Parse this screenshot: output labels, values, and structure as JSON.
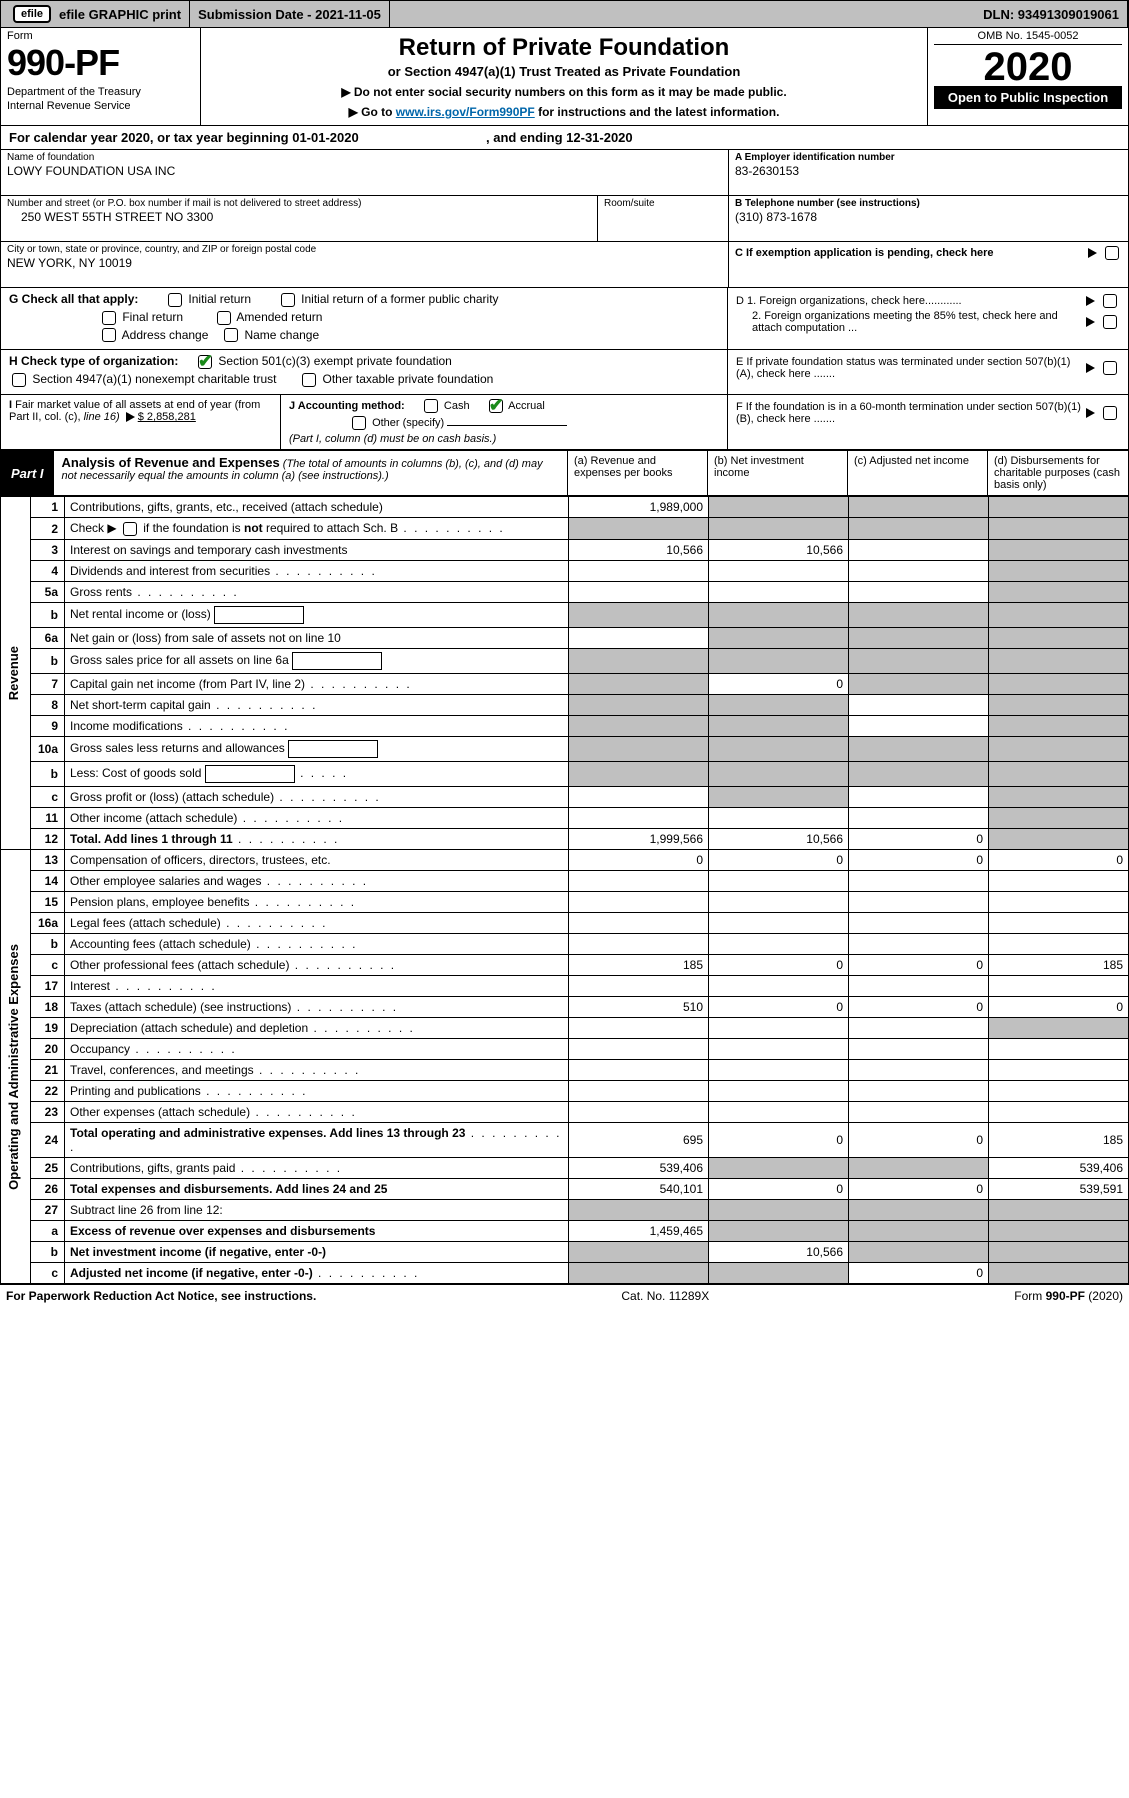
{
  "colors": {
    "shade": "#c0c0c0",
    "checkmark": "#1a8a1a",
    "link": "#0066aa"
  },
  "topbar": {
    "efile_label": "efile GRAPHIC print",
    "submission_label": "Submission Date - 2021-11-05",
    "dln": "DLN: 93491309019061"
  },
  "header": {
    "form_word": "Form",
    "form_number": "990-PF",
    "dept": "Department of the Treasury",
    "irs": "Internal Revenue Service",
    "title": "Return of Private Foundation",
    "subtitle": "or Section 4947(a)(1) Trust Treated as Private Foundation",
    "note1_pre": "▶ Do not enter social security numbers on this form as it may be made public.",
    "note2_pre": "▶ Go to ",
    "note2_link": "www.irs.gov/Form990PF",
    "note2_post": " for instructions and the latest information.",
    "omb": "OMB No. 1545-0052",
    "year": "2020",
    "open_text": "Open to Public Inspection"
  },
  "cal_year": {
    "prefix": "For calendar year 2020, or tax year beginning 01-01-2020",
    "mid": ", and ending 12-31-2020"
  },
  "id": {
    "name_lbl": "Name of foundation",
    "name_val": "LOWY FOUNDATION USA INC",
    "addr_lbl": "Number and street (or P.O. box number if mail is not delivered to street address)",
    "room_lbl": "Room/suite",
    "addr_val": "250 WEST 55TH STREET NO 3300",
    "city_lbl": "City or town, state or province, country, and ZIP or foreign postal code",
    "city_val": "NEW YORK, NY  10019",
    "a_lbl": "A Employer identification number",
    "a_val": "83-2630153",
    "b_lbl": "B Telephone number (see instructions)",
    "b_val": "(310) 873-1678",
    "c_lbl": "C If exemption application is pending, check here",
    "d1_lbl": "D 1. Foreign organizations, check here............",
    "d2_lbl": "2. Foreign organizations meeting the 85% test, check here and attach computation ...",
    "e_lbl": "E  If private foundation status was terminated under section 507(b)(1)(A), check here .......",
    "f_lbl": "F  If the foundation is in a 60-month termination under section 507(b)(1)(B), check here .......",
    "g_lbl": "G Check all that apply:",
    "g_opts": [
      "Initial return",
      "Initial return of a former public charity",
      "Final return",
      "Amended return",
      "Address change",
      "Name change"
    ],
    "h_lbl": "H Check type of organization:",
    "h_opt1": "Section 501(c)(3) exempt private foundation",
    "h_opt2": "Section 4947(a)(1) nonexempt charitable trust",
    "h_opt3": "Other taxable private foundation",
    "i_lbl": "I Fair market value of all assets at end of year (from Part II, col. (c), line 16) ▶",
    "i_val": "$  2,858,281",
    "j_lbl": "J Accounting method:",
    "j_opts": [
      "Cash",
      "Accrual"
    ],
    "j_other": "Other (specify)",
    "j_note": "(Part I, column (d) must be on cash basis.)"
  },
  "part1": {
    "tag": "Part I",
    "title": "Analysis of Revenue and Expenses",
    "title_note": " (The total of amounts in columns (b), (c), and (d) may not necessarily equal the amounts in column (a) (see instructions).)",
    "col_a": "(a)   Revenue and expenses per books",
    "col_b": "(b)   Net investment income",
    "col_c": "(c)   Adjusted net income",
    "col_d": "(d)   Disbursements for charitable purposes (cash basis only)",
    "side_rev": "Revenue",
    "side_exp": "Operating and Administrative Expenses"
  },
  "rows_rev": [
    {
      "n": "1",
      "desc": "Contributions, gifts, grants, etc., received (attach schedule)",
      "a": "1,989,000",
      "b": "",
      "c": "",
      "d": "",
      "shade_b": true,
      "shade_c": true,
      "shade_d": true
    },
    {
      "n": "2",
      "desc": "Check ▶ ☐ if the foundation is not required to attach Sch. B",
      "dots": true,
      "a": "",
      "b": "",
      "c": "",
      "d": "",
      "shade_a": true,
      "shade_b": true,
      "shade_c": true,
      "shade_d": true,
      "html": true
    },
    {
      "n": "3",
      "desc": "Interest on savings and temporary cash investments",
      "a": "10,566",
      "b": "10,566",
      "c": "",
      "d": "",
      "shade_d": true
    },
    {
      "n": "4",
      "desc": "Dividends and interest from securities",
      "dots": true,
      "a": "",
      "b": "",
      "c": "",
      "d": "",
      "shade_d": true
    },
    {
      "n": "5a",
      "desc": "Gross rents",
      "dots": true,
      "a": "",
      "b": "",
      "c": "",
      "d": "",
      "shade_d": true
    },
    {
      "n": "b",
      "desc": "Net rental income or (loss)",
      "box": true,
      "a": "",
      "b": "",
      "c": "",
      "d": "",
      "shade_a": true,
      "shade_b": true,
      "shade_c": true,
      "shade_d": true
    },
    {
      "n": "6a",
      "desc": "Net gain or (loss) from sale of assets not on line 10",
      "a": "",
      "b": "",
      "c": "",
      "d": "",
      "shade_b": true,
      "shade_c": true,
      "shade_d": true
    },
    {
      "n": "b",
      "desc": "Gross sales price for all assets on line 6a",
      "box": true,
      "a": "",
      "b": "",
      "c": "",
      "d": "",
      "shade_a": true,
      "shade_b": true,
      "shade_c": true,
      "shade_d": true
    },
    {
      "n": "7",
      "desc": "Capital gain net income (from Part IV, line 2)",
      "dots": true,
      "a": "",
      "b": "0",
      "c": "",
      "d": "",
      "shade_a": true,
      "shade_c": true,
      "shade_d": true
    },
    {
      "n": "8",
      "desc": "Net short-term capital gain",
      "dots": true,
      "a": "",
      "b": "",
      "c": "",
      "d": "",
      "shade_a": true,
      "shade_b": true,
      "shade_d": true
    },
    {
      "n": "9",
      "desc": "Income modifications",
      "dots": true,
      "a": "",
      "b": "",
      "c": "",
      "d": "",
      "shade_a": true,
      "shade_b": true,
      "shade_d": true
    },
    {
      "n": "10a",
      "desc": "Gross sales less returns and allowances",
      "box": true,
      "a": "",
      "b": "",
      "c": "",
      "d": "",
      "shade_a": true,
      "shade_b": true,
      "shade_c": true,
      "shade_d": true
    },
    {
      "n": "b",
      "desc": "Less: Cost of goods sold",
      "dots": true,
      "box": true,
      "a": "",
      "b": "",
      "c": "",
      "d": "",
      "shade_a": true,
      "shade_b": true,
      "shade_c": true,
      "shade_d": true
    },
    {
      "n": "c",
      "desc": "Gross profit or (loss) (attach schedule)",
      "dots": true,
      "a": "",
      "b": "",
      "c": "",
      "d": "",
      "shade_b": true,
      "shade_d": true
    },
    {
      "n": "11",
      "desc": "Other income (attach schedule)",
      "dots": true,
      "a": "",
      "b": "",
      "c": "",
      "d": "",
      "shade_d": true
    },
    {
      "n": "12",
      "desc": "Total. Add lines 1 through 11",
      "dots": true,
      "bold": true,
      "a": "1,999,566",
      "b": "10,566",
      "c": "0",
      "d": "",
      "shade_d": true
    }
  ],
  "rows_exp": [
    {
      "n": "13",
      "desc": "Compensation of officers, directors, trustees, etc.",
      "a": "0",
      "b": "0",
      "c": "0",
      "d": "0"
    },
    {
      "n": "14",
      "desc": "Other employee salaries and wages",
      "dots": true,
      "a": "",
      "b": "",
      "c": "",
      "d": ""
    },
    {
      "n": "15",
      "desc": "Pension plans, employee benefits",
      "dots": true,
      "a": "",
      "b": "",
      "c": "",
      "d": ""
    },
    {
      "n": "16a",
      "desc": "Legal fees (attach schedule)",
      "dots": true,
      "a": "",
      "b": "",
      "c": "",
      "d": ""
    },
    {
      "n": "b",
      "desc": "Accounting fees (attach schedule)",
      "dots": true,
      "a": "",
      "b": "",
      "c": "",
      "d": ""
    },
    {
      "n": "c",
      "desc": "Other professional fees (attach schedule)",
      "dots": true,
      "a": "185",
      "b": "0",
      "c": "0",
      "d": "185"
    },
    {
      "n": "17",
      "desc": "Interest",
      "dots": true,
      "a": "",
      "b": "",
      "c": "",
      "d": ""
    },
    {
      "n": "18",
      "desc": "Taxes (attach schedule) (see instructions)",
      "dots": true,
      "a": "510",
      "b": "0",
      "c": "0",
      "d": "0"
    },
    {
      "n": "19",
      "desc": "Depreciation (attach schedule) and depletion",
      "dots": true,
      "a": "",
      "b": "",
      "c": "",
      "d": "",
      "shade_d": true
    },
    {
      "n": "20",
      "desc": "Occupancy",
      "dots": true,
      "a": "",
      "b": "",
      "c": "",
      "d": ""
    },
    {
      "n": "21",
      "desc": "Travel, conferences, and meetings",
      "dots": true,
      "a": "",
      "b": "",
      "c": "",
      "d": ""
    },
    {
      "n": "22",
      "desc": "Printing and publications",
      "dots": true,
      "a": "",
      "b": "",
      "c": "",
      "d": ""
    },
    {
      "n": "23",
      "desc": "Other expenses (attach schedule)",
      "dots": true,
      "a": "",
      "b": "",
      "c": "",
      "d": ""
    },
    {
      "n": "24",
      "desc": "Total operating and administrative expenses. Add lines 13 through 23",
      "dots": true,
      "bold": true,
      "a": "695",
      "b": "0",
      "c": "0",
      "d": "185",
      "two_line": true
    },
    {
      "n": "25",
      "desc": "Contributions, gifts, grants paid",
      "dots": true,
      "a": "539,406",
      "b": "",
      "c": "",
      "d": "539,406",
      "shade_b": true,
      "shade_c": true
    },
    {
      "n": "26",
      "desc": "Total expenses and disbursements. Add lines 24 and 25",
      "bold": true,
      "a": "540,101",
      "b": "0",
      "c": "0",
      "d": "539,591"
    },
    {
      "n": "27",
      "desc": "Subtract line 26 from line 12:",
      "a": "",
      "b": "",
      "c": "",
      "d": "",
      "shade_a": true,
      "shade_b": true,
      "shade_c": true,
      "shade_d": true
    },
    {
      "n": "a",
      "desc": "Excess of revenue over expenses and disbursements",
      "bold": true,
      "a": "1,459,465",
      "b": "",
      "c": "",
      "d": "",
      "shade_b": true,
      "shade_c": true,
      "shade_d": true
    },
    {
      "n": "b",
      "desc": "Net investment income (if negative, enter -0-)",
      "bold": true,
      "a": "",
      "b": "10,566",
      "c": "",
      "d": "",
      "shade_a": true,
      "shade_c": true,
      "shade_d": true
    },
    {
      "n": "c",
      "desc": "Adjusted net income (if negative, enter -0-)",
      "dots": true,
      "bold": true,
      "a": "",
      "b": "",
      "c": "0",
      "d": "",
      "shade_a": true,
      "shade_b": true,
      "shade_d": true
    }
  ],
  "footer": {
    "left": "For Paperwork Reduction Act Notice, see instructions.",
    "mid": "Cat. No. 11289X",
    "right": "Form 990-PF (2020)"
  }
}
